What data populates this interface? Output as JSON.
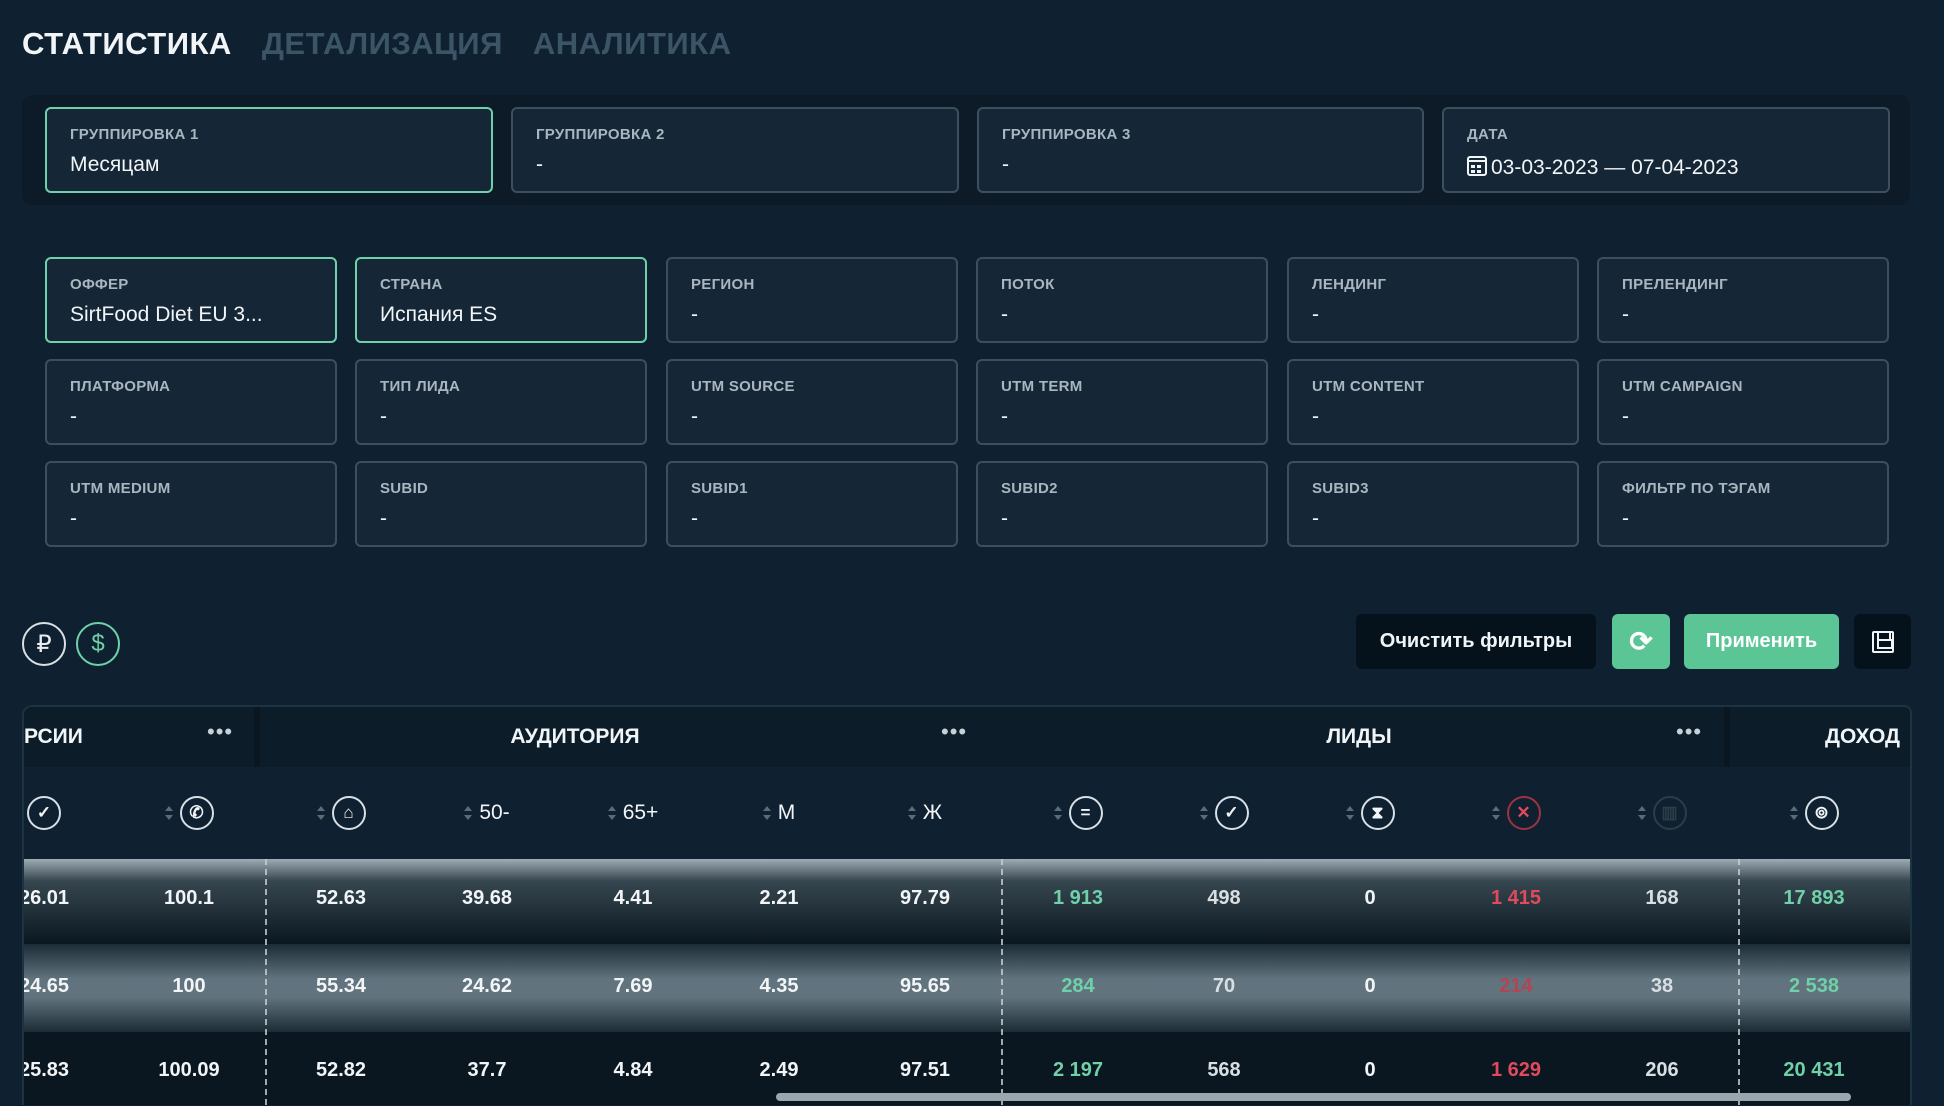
{
  "tabs": [
    "СТАТИСТИКА",
    "ДЕТАЛИЗАЦИЯ",
    "АНАЛИТИКА"
  ],
  "grouping": [
    {
      "label": "ГРУППИРОВКА 1",
      "value": "Месяцам"
    },
    {
      "label": "ГРУППИРОВКА 2",
      "value": "-"
    },
    {
      "label": "ГРУППИРОВКА 3",
      "value": "-"
    },
    {
      "label": "ДАТА",
      "value": "03-03-2023 — 07-04-2023"
    }
  ],
  "filters": [
    {
      "label": "ОФФЕР",
      "value": "SirtFood Diet EU 3..."
    },
    {
      "label": "СТРАНА",
      "value": "Испания ES"
    },
    {
      "label": "РЕГИОН",
      "value": "-"
    },
    {
      "label": "ПОТОК",
      "value": "-"
    },
    {
      "label": "ЛЕНДИНГ",
      "value": "-"
    },
    {
      "label": "ПРЕЛЕНДИНГ",
      "value": "-"
    },
    {
      "label": "ПЛАТФОРМА",
      "value": "-"
    },
    {
      "label": "ТИП ЛИДА",
      "value": "-"
    },
    {
      "label": "UTM SOURCE",
      "value": "-"
    },
    {
      "label": "UTM TERM",
      "value": "-"
    },
    {
      "label": "UTM CONTENT",
      "value": "-"
    },
    {
      "label": "UTM CAMPAIGN",
      "value": "-"
    },
    {
      "label": "UTM MEDIUM",
      "value": "-"
    },
    {
      "label": "SUBID",
      "value": "-"
    },
    {
      "label": "SUBID1",
      "value": "-"
    },
    {
      "label": "SUBID2",
      "value": "-"
    },
    {
      "label": "SUBID3",
      "value": "-"
    },
    {
      "label": "ФИЛЬТР ПО ТЭГАМ",
      "value": "-"
    }
  ],
  "currency": {
    "rub": "₽",
    "usd": "$"
  },
  "actions": {
    "clear": "Очистить фильтры",
    "refresh": "⟳",
    "apply": "Применить"
  },
  "colors": {
    "accent": "#5cc596",
    "active_border": "#6fd0a9",
    "negative": "#e04a5c",
    "background": "#0f2130"
  },
  "table": {
    "groups": [
      "РСИИ",
      "АУДИТОРИЯ",
      "ЛИДЫ",
      "ДОХОД"
    ],
    "columns": [
      {
        "icon": "check-percent-icon",
        "text": ""
      },
      {
        "icon": "phone-percent-icon",
        "text": ""
      },
      {
        "icon": "audience-icon",
        "text": ""
      },
      {
        "icon": "",
        "text": "50-"
      },
      {
        "icon": "",
        "text": "65+"
      },
      {
        "icon": "",
        "text": "М"
      },
      {
        "icon": "",
        "text": "Ж"
      },
      {
        "icon": "equals-icon",
        "text": ""
      },
      {
        "icon": "check-icon",
        "text": ""
      },
      {
        "icon": "hourglass-icon",
        "text": ""
      },
      {
        "icon": "cross-icon",
        "text": ""
      },
      {
        "icon": "trash-icon",
        "text": ""
      },
      {
        "icon": "money-icon",
        "text": ""
      }
    ],
    "rows": [
      [
        "26.01",
        "100.1",
        "52.63",
        "39.68",
        "4.41",
        "2.21",
        "97.79",
        "1 913",
        "498",
        "0",
        "1 415",
        "168",
        "17 893"
      ],
      [
        "24.65",
        "100",
        "55.34",
        "24.62",
        "7.69",
        "4.35",
        "95.65",
        "284",
        "70",
        "0",
        "214",
        "38",
        "2 538"
      ],
      [
        "25.83",
        "100.09",
        "52.82",
        "37.7",
        "4.84",
        "2.49",
        "97.51",
        "2 197",
        "568",
        "0",
        "1 629",
        "206",
        "20 431"
      ]
    ]
  }
}
